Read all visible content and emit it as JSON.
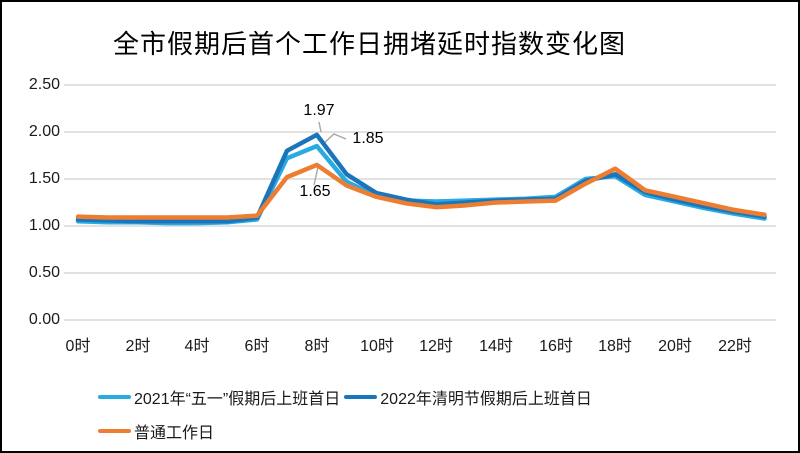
{
  "chart_data": {
    "type": "line",
    "title": "全市假期后首个工作日拥堵延时指数变化图",
    "xlabel": "",
    "ylabel": "",
    "ylim": [
      0.0,
      2.5
    ],
    "y_tick_step": 0.5,
    "grid": true,
    "legend_position": "bottom",
    "y_ticks_top_to_bottom": [
      "2.50",
      "2.00",
      "1.50",
      "1.00",
      "0.50",
      "0.00"
    ],
    "x_tick_labels": [
      "0时",
      "2时",
      "4时",
      "6时",
      "8时",
      "10时",
      "12时",
      "14时",
      "16时",
      "18时",
      "20时",
      "22时"
    ],
    "x_hours": [
      0,
      1,
      2,
      3,
      4,
      5,
      6,
      7,
      8,
      9,
      10,
      11,
      12,
      13,
      14,
      15,
      16,
      17,
      18,
      19,
      20,
      21,
      22,
      23
    ],
    "series": [
      {
        "name": "2021年“五一”假期后上班首日",
        "color": "#29ABE2",
        "values": [
          1.05,
          1.04,
          1.04,
          1.03,
          1.03,
          1.04,
          1.07,
          1.72,
          1.85,
          1.47,
          1.32,
          1.27,
          1.26,
          1.27,
          1.28,
          1.29,
          1.31,
          1.5,
          1.53,
          1.33,
          1.26,
          1.19,
          1.13,
          1.08
        ]
      },
      {
        "name": "2022年清明节假期后上班首日",
        "color": "#1B75BC",
        "values": [
          1.07,
          1.06,
          1.05,
          1.05,
          1.05,
          1.05,
          1.09,
          1.8,
          1.97,
          1.55,
          1.35,
          1.28,
          1.23,
          1.25,
          1.27,
          1.28,
          1.29,
          1.48,
          1.55,
          1.36,
          1.28,
          1.21,
          1.15,
          1.1
        ]
      },
      {
        "name": "普通工作日",
        "color": "#ED7D31",
        "values": [
          1.1,
          1.09,
          1.09,
          1.09,
          1.09,
          1.09,
          1.11,
          1.52,
          1.65,
          1.43,
          1.31,
          1.24,
          1.2,
          1.22,
          1.25,
          1.26,
          1.27,
          1.45,
          1.61,
          1.38,
          1.31,
          1.24,
          1.17,
          1.12
        ]
      }
    ],
    "annotations": [
      {
        "label": "1.97",
        "series": "2022年清明节假期后上班首日",
        "hour": 8,
        "value": 1.97
      },
      {
        "label": "1.85",
        "series": "2021年“五一”假期后上班首日",
        "hour": 8,
        "value": 1.85
      },
      {
        "label": "1.65",
        "series": "普通工作日",
        "hour": 8,
        "value": 1.65
      }
    ],
    "colors": {
      "gridline": "#D9D9D9",
      "leader_line": "#A6A6A6",
      "axis_text": "#1a1a1a",
      "title_text": "#000000"
    }
  }
}
